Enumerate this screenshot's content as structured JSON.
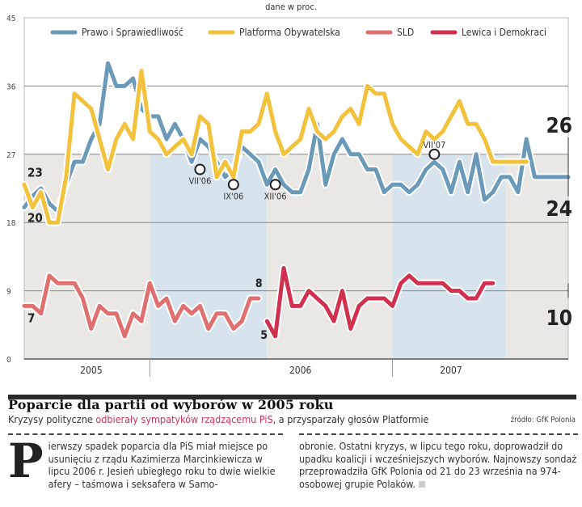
{
  "chart_data": {
    "type": "line",
    "unit_note": "dane w proc.",
    "ylim": [
      0,
      45
    ],
    "yticks": [
      0,
      9,
      18,
      27,
      36,
      45
    ],
    "xlim": [
      0,
      58
    ],
    "x_unit": "month index from start of 2005 period",
    "x_year_labels": [
      {
        "label": "2005",
        "x": 8
      },
      {
        "label": "2006",
        "x": 33
      },
      {
        "label": "2007",
        "x": 51
      }
    ],
    "x_year_dividers": [
      15,
      44
    ],
    "bands": [
      {
        "from": 0,
        "to": 15,
        "color": "#e9e8e4"
      },
      {
        "from": 15,
        "to": 29,
        "color": "#d8e4ed"
      },
      {
        "from": 29,
        "to": 44,
        "color": "#e9e8e4"
      },
      {
        "from": 44,
        "to": 57.5,
        "color": "#d8e4ed"
      },
      {
        "from": 57.5,
        "to": 66,
        "color": "#e9e8e4"
      }
    ],
    "series": [
      {
        "name": "Prawo i Sprawiedliwość",
        "color": "#6b9ab8",
        "x": [
          0,
          1,
          2,
          3,
          4,
          5,
          6,
          7,
          8,
          9,
          10,
          11,
          12,
          13,
          14,
          15,
          16,
          17,
          18,
          19,
          20,
          21,
          22,
          23,
          24,
          25,
          26,
          27,
          28,
          29,
          30,
          31,
          32,
          33,
          34,
          35,
          36,
          37,
          38,
          39,
          40,
          41,
          42,
          43,
          44,
          45,
          46,
          47,
          48,
          49,
          50,
          51,
          52,
          53,
          54,
          55,
          56,
          57,
          58,
          59,
          60,
          61,
          62,
          63,
          64,
          65
        ],
        "values": [
          20,
          21.5,
          22.5,
          20.5,
          19.5,
          23,
          26,
          26,
          29,
          31,
          39,
          36,
          36,
          37,
          33,
          32,
          32,
          29,
          31,
          29,
          26,
          29,
          28,
          26,
          24,
          25,
          28,
          27,
          26,
          23,
          25,
          23,
          22,
          22,
          25,
          31,
          23,
          27,
          29,
          27,
          27,
          25,
          25,
          22,
          23,
          23,
          22,
          23,
          25,
          26,
          25,
          22,
          26,
          22,
          27,
          21,
          22,
          24,
          24,
          22,
          29,
          24,
          24,
          24,
          24,
          24
        ],
        "start_label": "20",
        "end_label": "24"
      },
      {
        "name": "Platforma Obywatelska",
        "color": "#f3c23c",
        "x": [
          0,
          1,
          2,
          3,
          4,
          5,
          6,
          7,
          8,
          9,
          10,
          11,
          12,
          13,
          14,
          15,
          16,
          17,
          18,
          19,
          20,
          21,
          22,
          23,
          24,
          25,
          26,
          27,
          28,
          29,
          30,
          31,
          32,
          33,
          34,
          35,
          36,
          37,
          38,
          39,
          40,
          41,
          42,
          43,
          44,
          45,
          46,
          47,
          48,
          49,
          50,
          51,
          52,
          53,
          54,
          55,
          56,
          57,
          58,
          59,
          60
        ],
        "values": [
          23,
          20,
          22,
          18,
          18,
          24,
          35,
          34,
          33,
          29,
          25,
          29,
          31,
          29,
          38,
          30,
          29,
          27,
          28,
          29,
          27,
          32,
          31,
          24,
          26,
          24,
          30,
          30,
          31,
          35,
          30,
          27,
          28,
          29,
          33,
          30,
          29,
          30,
          32,
          33,
          31,
          36,
          35,
          35,
          31,
          29,
          28,
          27,
          30,
          29,
          30,
          32,
          34,
          31,
          31,
          29,
          26,
          26,
          26,
          26,
          26
        ],
        "start_label": "23",
        "end_label": "26"
      },
      {
        "name": "SLD",
        "color": "#e0706f",
        "x": [
          0,
          1,
          2,
          3,
          4,
          5,
          6,
          7,
          8,
          9,
          10,
          11,
          12,
          13,
          14,
          15,
          16,
          17,
          18,
          19,
          20,
          21,
          22,
          23,
          24,
          25,
          26,
          27,
          28
        ],
        "values": [
          7,
          7,
          6,
          11,
          10,
          10,
          10,
          8,
          4,
          7,
          6,
          6,
          3,
          6,
          5,
          10,
          7,
          8,
          5,
          7,
          6,
          7,
          4,
          6,
          6,
          4,
          5,
          8,
          8
        ],
        "start_label": "7",
        "end_label": "8"
      },
      {
        "name": "Lewica i Demokraci",
        "color": "#d2304f",
        "x": [
          29,
          30,
          31,
          32,
          33,
          34,
          35,
          36,
          37,
          38,
          39,
          40,
          41,
          42,
          43,
          44,
          45,
          46,
          47,
          48,
          49,
          50,
          51,
          52,
          53,
          54,
          55,
          56
        ],
        "values": [
          5,
          3,
          12,
          7,
          7,
          9,
          8,
          7,
          5,
          9,
          4,
          7,
          8,
          8,
          8,
          7,
          10,
          11,
          10,
          10,
          10,
          10,
          9,
          9,
          8,
          8,
          10,
          10
        ],
        "start_label": "5",
        "end_label": "10"
      }
    ],
    "annotations": [
      {
        "label": "VII'06",
        "series": "Prawo i Sprawiedliwość",
        "x": 21,
        "value": 25
      },
      {
        "label": "IX'06",
        "series": "Prawo i Sprawiedliwość",
        "x": 25,
        "value": 23
      },
      {
        "label": "XII'06",
        "series": "Prawo i Sprawiedliwość",
        "x": 30,
        "value": 23
      },
      {
        "label": "VII'07",
        "series": "Prawo i Sprawiedliwość",
        "x": 49,
        "value": 27
      }
    ],
    "legend_position": "top"
  },
  "article": {
    "title": "Poparcie dla partii od wyborów w 2005 roku",
    "deck_before": "Kryzysy polityczne ",
    "deck_highlight": "odbierały sympatyków rządzącemu PiS",
    "deck_after": ", a przysparzały głosów Platformie",
    "source": "źródło: GfK Polonia",
    "dropcap": "P",
    "col1": "ierwszy spadek poparcia dla PiS miał miejsce po usunięciu z rządu Kazimierza Marcinkiewicza w lipcu 2006 r. Jesień ubiegłego roku to dwie wielkie afery – taśmowa i seksafera w Samo-",
    "col2": "obronie. Ostatni kryzys, w lipcu tego roku, doprowadził do upadku koalicji i wcześniejszych wyborów. Najnowszy sondaż przeprowadziła GfK Polonia od 21 do 23 września na 974-osobowej grupie Polaków."
  }
}
